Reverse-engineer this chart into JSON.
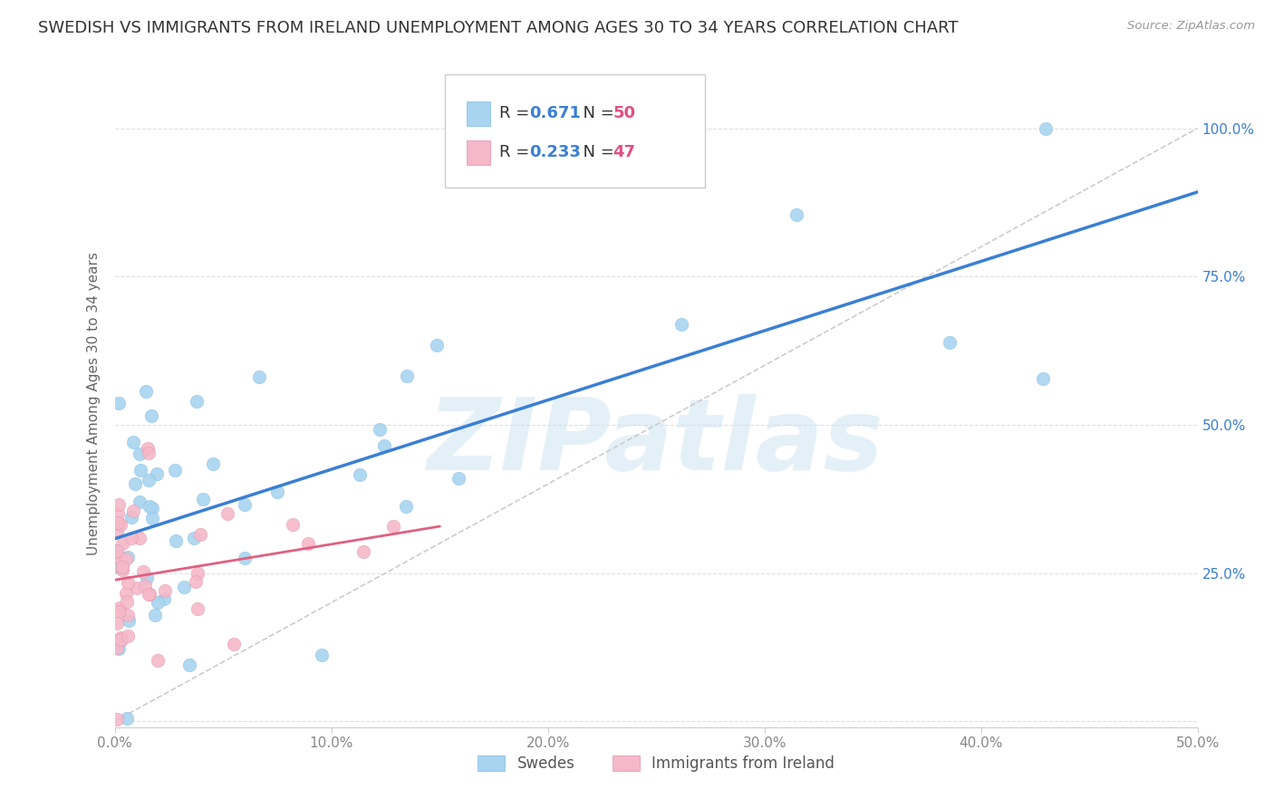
{
  "title": "SWEDISH VS IMMIGRANTS FROM IRELAND UNEMPLOYMENT AMONG AGES 30 TO 34 YEARS CORRELATION CHART",
  "source": "Source: ZipAtlas.com",
  "ylabel": "Unemployment Among Ages 30 to 34 years",
  "xlim": [
    0.0,
    0.5
  ],
  "ylim": [
    -0.01,
    1.08
  ],
  "R_swedes": 0.671,
  "N_swedes": 50,
  "R_ireland": 0.233,
  "N_ireland": 47,
  "swedes_color": "#a8d4f0",
  "ireland_color": "#f5b8c8",
  "swedes_line_color": "#3a7fd4",
  "ireland_line_color": "#e06080",
  "ref_line_color": "#cccccc",
  "watermark": "ZIPatlas",
  "watermark_color": "#c5dff0",
  "legend_label_swedes": "Swedes",
  "legend_label_ireland": "Immigrants from Ireland",
  "title_fontsize": 13,
  "axis_label_fontsize": 11,
  "tick_fontsize": 11,
  "legend_fontsize": 13,
  "R_color": "#3a7fd4",
  "N_color": "#e05080",
  "label_color": "#888888"
}
